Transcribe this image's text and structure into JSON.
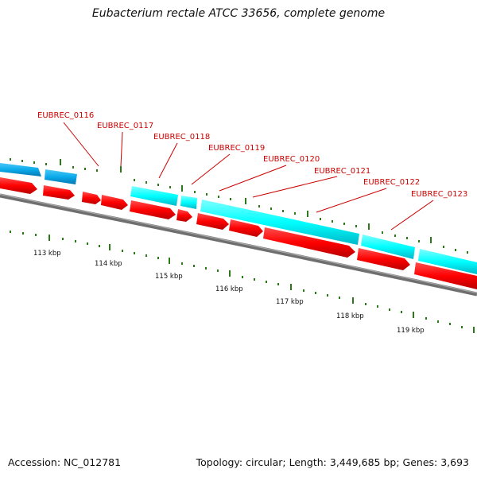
{
  "title": "Eubacterium rectale ATCC 33656, complete genome",
  "footer": {
    "accession": "Accession: NC_012781",
    "summary": "Topology: circular; Length: 3,449,685 bp; Genes: 3,693"
  },
  "colors": {
    "forward_gene": "#ff0000",
    "reverse_gene_cyan": "#00ffff",
    "reverse_gene_blue": "#0aaaea",
    "backbone": "#777777",
    "ticks": "#2a7a1a",
    "label": "#cc0000"
  },
  "gene_labels": [
    "EUBREC_0116",
    "EUBREC_0117",
    "EUBREC_0118",
    "EUBREC_0119",
    "EUBREC_0120",
    "EUBREC_0121",
    "EUBREC_0122",
    "EUBREC_0123"
  ],
  "kbp_labels": [
    "113 kbp",
    "114 kbp",
    "115 kbp",
    "116 kbp",
    "117 kbp",
    "118 kbp",
    "119 kbp"
  ]
}
